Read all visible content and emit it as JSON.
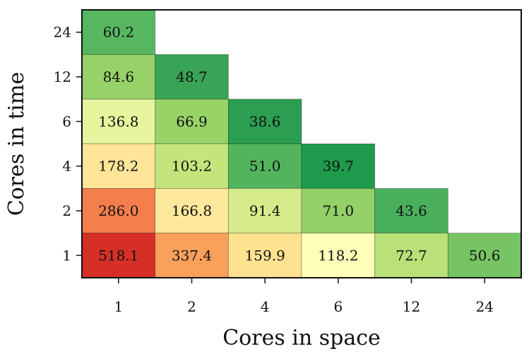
{
  "chart_data": {
    "type": "heatmap",
    "title": "",
    "xlabel": "Cores in space",
    "ylabel": "Cores in time",
    "x_categories": [
      "1",
      "2",
      "4",
      "6",
      "12",
      "24"
    ],
    "y_categories": [
      "24",
      "12",
      "6",
      "4",
      "2",
      "1"
    ],
    "colormap": "RdYlGn_r",
    "color_range": [
      0,
      650
    ],
    "cells": [
      {
        "x": "1",
        "y": "24",
        "value": 60.2,
        "label": "60.2",
        "color": "#57b760"
      },
      {
        "x": "1",
        "y": "12",
        "value": 84.6,
        "label": "84.6",
        "color": "#97d268"
      },
      {
        "x": "2",
        "y": "12",
        "value": 48.7,
        "label": "48.7",
        "color": "#3aa456"
      },
      {
        "x": "1",
        "y": "6",
        "value": 136.8,
        "label": "136.8",
        "color": "#e8f59f"
      },
      {
        "x": "2",
        "y": "6",
        "value": 66.9,
        "label": "66.9",
        "color": "#98d368"
      },
      {
        "x": "4",
        "y": "6",
        "value": 38.6,
        "label": "38.6",
        "color": "#2b9e51"
      },
      {
        "x": "1",
        "y": "4",
        "value": 178.2,
        "label": "178.2",
        "color": "#fee597"
      },
      {
        "x": "2",
        "y": "4",
        "value": 103.2,
        "label": "103.2",
        "color": "#c4e57b"
      },
      {
        "x": "4",
        "y": "4",
        "value": 51.0,
        "label": "51.0",
        "color": "#52b55e"
      },
      {
        "x": "6",
        "y": "4",
        "value": 39.7,
        "label": "39.7",
        "color": "#1f9a4c"
      },
      {
        "x": "1",
        "y": "2",
        "value": 286.0,
        "label": "286.0",
        "color": "#f57f4c"
      },
      {
        "x": "2",
        "y": "2",
        "value": 166.8,
        "label": "166.8",
        "color": "#fee89c"
      },
      {
        "x": "4",
        "y": "2",
        "value": 91.4,
        "label": "91.4",
        "color": "#d6ec8c"
      },
      {
        "x": "6",
        "y": "2",
        "value": 71.0,
        "label": "71.0",
        "color": "#93d067"
      },
      {
        "x": "12",
        "y": "2",
        "value": 43.6,
        "label": "43.6",
        "color": "#4aaf5d"
      },
      {
        "x": "1",
        "y": "1",
        "value": 518.1,
        "label": "518.1",
        "color": "#d62f27"
      },
      {
        "x": "2",
        "y": "1",
        "value": 337.4,
        "label": "337.4",
        "color": "#f9a05a"
      },
      {
        "x": "4",
        "y": "1",
        "value": 159.9,
        "label": "159.9",
        "color": "#fee290"
      },
      {
        "x": "6",
        "y": "1",
        "value": 118.2,
        "label": "118.2",
        "color": "#ffffb9"
      },
      {
        "x": "12",
        "y": "1",
        "value": 72.7,
        "label": "72.7",
        "color": "#b9e178"
      },
      {
        "x": "24",
        "y": "1",
        "value": 50.6,
        "label": "50.6",
        "color": "#76c463"
      }
    ]
  }
}
